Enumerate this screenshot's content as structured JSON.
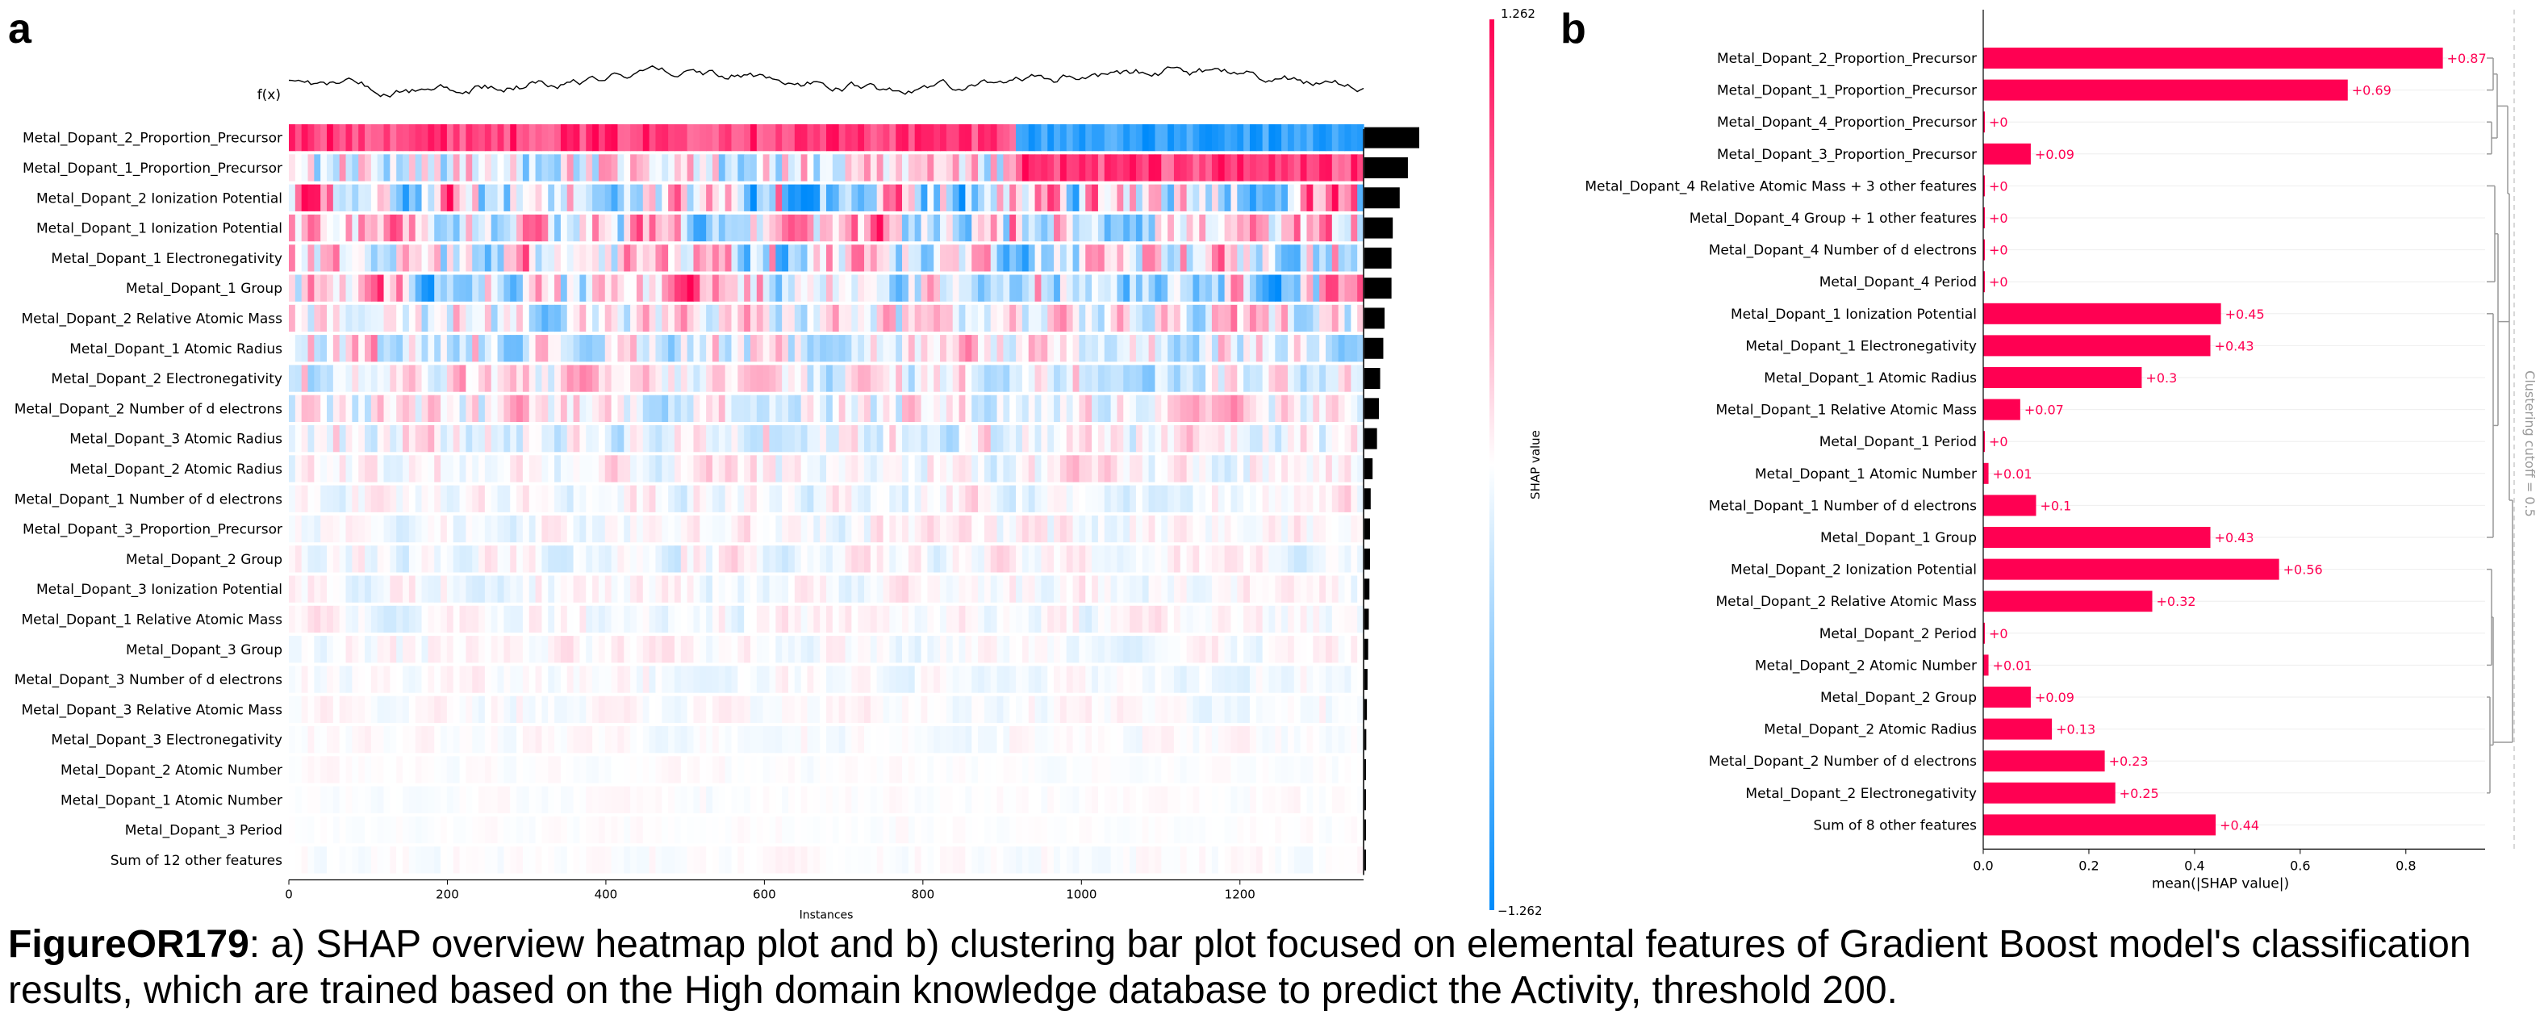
{
  "panel_a": {
    "letter": "a"
  },
  "panel_b": {
    "letter": "b"
  },
  "caption": {
    "label": "FigureOR179",
    "text": ": a) SHAP overview heatmap plot and b) clustering bar plot focused on elemental features of Gradient Boost model's classification results, which are trained based on the High domain knowledge database to predict the Activity, threshold 200."
  },
  "colors": {
    "positive": "#ff0052",
    "negative": "#008bfb",
    "neutral": "#ffffff"
  },
  "chart_data": [
    {
      "type": "heatmap",
      "fx_label": "f(x)",
      "xlabel": "Instances",
      "x_ticks": [
        0,
        200,
        400,
        600,
        800,
        1000,
        1200
      ],
      "xlim": [
        0,
        1356
      ],
      "colorbar": {
        "label": "SHAP value",
        "max": "1.262",
        "min": "−1.262"
      },
      "features": [
        "Metal_Dopant_2_Proportion_Precursor",
        "Metal_Dopant_1_Proportion_Precursor",
        "Metal_Dopant_2 Ionization Potential",
        "Metal_Dopant_1 Ionization Potential",
        "Metal_Dopant_1 Electronegativity",
        "Metal_Dopant_1 Group",
        "Metal_Dopant_2 Relative Atomic Mass",
        "Metal_Dopant_1 Atomic Radius",
        "Metal_Dopant_2 Electronegativity",
        "Metal_Dopant_2 Number of d electrons",
        "Metal_Dopant_3 Atomic Radius",
        "Metal_Dopant_2 Atomic Radius",
        "Metal_Dopant_1 Number of d electrons",
        "Metal_Dopant_3_Proportion_Precursor",
        "Metal_Dopant_2 Group",
        "Metal_Dopant_3 Ionization Potential",
        "Metal_Dopant_1 Relative Atomic Mass",
        "Metal_Dopant_3 Group",
        "Metal_Dopant_3 Number of d electrons",
        "Metal_Dopant_3 Relative Atomic Mass",
        "Metal_Dopant_3 Electronegativity",
        "Metal_Dopant_2 Atomic Number",
        "Metal_Dopant_1 Atomic Number",
        "Metal_Dopant_3 Period",
        "Sum of 12 other features"
      ],
      "mean_abs_shap": [
        0.87,
        0.69,
        0.56,
        0.45,
        0.43,
        0.43,
        0.32,
        0.3,
        0.25,
        0.23,
        0.2,
        0.13,
        0.1,
        0.09,
        0.09,
        0.08,
        0.07,
        0.06,
        0.05,
        0.04,
        0.03,
        0.01,
        0.01,
        0.005,
        0.02
      ]
    },
    {
      "type": "bar",
      "xlabel": "mean(|SHAP value|)",
      "xlim": [
        0,
        0.95
      ],
      "x_ticks": [
        "0.0",
        "0.2",
        "0.4",
        "0.6",
        "0.8"
      ],
      "cutoff_label": "Clustering cutoff = 0.5",
      "categories": [
        "Metal_Dopant_2_Proportion_Precursor",
        "Metal_Dopant_1_Proportion_Precursor",
        "Metal_Dopant_4_Proportion_Precursor",
        "Metal_Dopant_3_Proportion_Precursor",
        "Metal_Dopant_4 Relative Atomic Mass + 3 other features",
        "Metal_Dopant_4 Group + 1 other features",
        "Metal_Dopant_4 Number of d electrons",
        "Metal_Dopant_4 Period",
        "Metal_Dopant_1 Ionization Potential",
        "Metal_Dopant_1 Electronegativity",
        "Metal_Dopant_1 Atomic Radius",
        "Metal_Dopant_1 Relative Atomic Mass",
        "Metal_Dopant_1 Period",
        "Metal_Dopant_1 Atomic Number",
        "Metal_Dopant_1 Number of d electrons",
        "Metal_Dopant_1 Group",
        "Metal_Dopant_2 Ionization Potential",
        "Metal_Dopant_2 Relative Atomic Mass",
        "Metal_Dopant_2 Period",
        "Metal_Dopant_2 Atomic Number",
        "Metal_Dopant_2 Group",
        "Metal_Dopant_2 Atomic Radius",
        "Metal_Dopant_2 Number of d electrons",
        "Metal_Dopant_2 Electronegativity",
        "Sum of 8 other features"
      ],
      "values": [
        0.87,
        0.69,
        0,
        0.09,
        0,
        0,
        0,
        0,
        0.45,
        0.43,
        0.3,
        0.07,
        0,
        0.01,
        0.1,
        0.43,
        0.56,
        0.32,
        0,
        0.01,
        0.09,
        0.13,
        0.23,
        0.25,
        0.44
      ],
      "labels": [
        "+0.87",
        "+0.69",
        "+0",
        "+0.09",
        "+0",
        "+0",
        "+0",
        "+0",
        "+0.45",
        "+0.43",
        "+0.3",
        "+0.07",
        "+0",
        "+0.01",
        "+0.1",
        "+0.43",
        "+0.56",
        "+0.32",
        "+0",
        "+0.01",
        "+0.09",
        "+0.13",
        "+0.23",
        "+0.25",
        "+0.44"
      ]
    }
  ]
}
